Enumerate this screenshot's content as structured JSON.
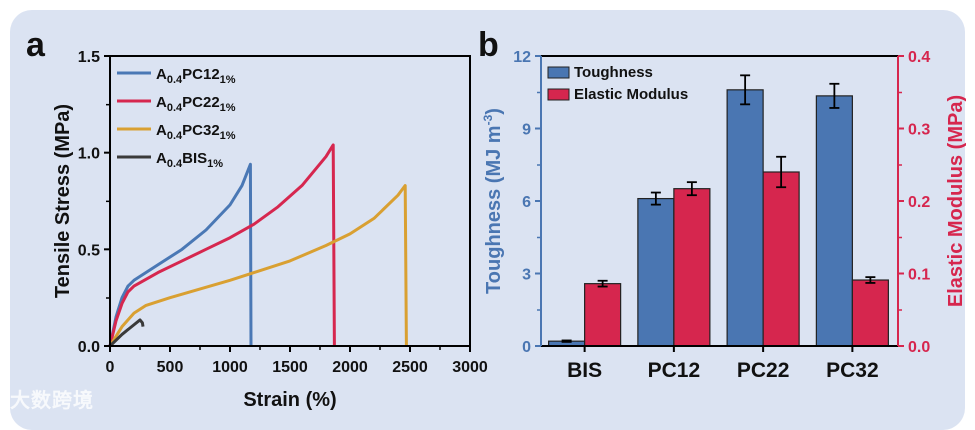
{
  "chart_data": [
    {
      "panel_label": "a",
      "type": "line",
      "xlabel": "Strain (%)",
      "ylabel": "Tensile Stress (MPa)",
      "xlim": [
        0,
        3000
      ],
      "ylim": [
        0,
        1.5
      ],
      "xticks": [
        "0",
        "500",
        "1000",
        "1500",
        "2000",
        "2500",
        "3000"
      ],
      "yticks": [
        "0.0",
        "0.5",
        "1.0",
        "1.5"
      ],
      "legend_position": "top-left",
      "series": [
        {
          "name": "A0.4PC12 1%",
          "base": "A",
          "sub1": "0.4",
          "mid": "PC12",
          "sub2": "1%",
          "color": "#4a78b5",
          "points": [
            [
              0,
              0
            ],
            [
              50,
              0.15
            ],
            [
              100,
              0.25
            ],
            [
              150,
              0.31
            ],
            [
              200,
              0.34
            ],
            [
              300,
              0.38
            ],
            [
              400,
              0.42
            ],
            [
              600,
              0.5
            ],
            [
              800,
              0.6
            ],
            [
              1000,
              0.73
            ],
            [
              1100,
              0.83
            ],
            [
              1170,
              0.94
            ],
            [
              1175,
              0
            ]
          ]
        },
        {
          "name": "A0.4PC22 1%",
          "base": "A",
          "sub1": "0.4",
          "mid": "PC22",
          "sub2": "1%",
          "color": "#d6274f",
          "points": [
            [
              0,
              0
            ],
            [
              50,
              0.13
            ],
            [
              100,
              0.22
            ],
            [
              150,
              0.28
            ],
            [
              200,
              0.31
            ],
            [
              400,
              0.38
            ],
            [
              600,
              0.44
            ],
            [
              800,
              0.5
            ],
            [
              1000,
              0.56
            ],
            [
              1200,
              0.63
            ],
            [
              1400,
              0.72
            ],
            [
              1600,
              0.83
            ],
            [
              1800,
              0.98
            ],
            [
              1860,
              1.04
            ],
            [
              1870,
              0
            ]
          ]
        },
        {
          "name": "A0.4PC32 1%",
          "base": "A",
          "sub1": "0.4",
          "mid": "PC32",
          "sub2": "1%",
          "color": "#d9a032",
          "points": [
            [
              0,
              0
            ],
            [
              100,
              0.1
            ],
            [
              200,
              0.17
            ],
            [
              300,
              0.21
            ],
            [
              500,
              0.25
            ],
            [
              1000,
              0.34
            ],
            [
              1200,
              0.38
            ],
            [
              1500,
              0.44
            ],
            [
              1800,
              0.52
            ],
            [
              2000,
              0.58
            ],
            [
              2200,
              0.66
            ],
            [
              2400,
              0.78
            ],
            [
              2460,
              0.83
            ],
            [
              2470,
              0
            ]
          ]
        },
        {
          "name": "A0.4BIS 1%",
          "base": "A",
          "sub1": "0.4",
          "mid": "BIS",
          "sub2": "1%",
          "color": "#3a3a3a",
          "points": [
            [
              0,
              0
            ],
            [
              100,
              0.06
            ],
            [
              200,
              0.11
            ],
            [
              250,
              0.135
            ],
            [
              270,
              0.12
            ],
            [
              275,
              0.1
            ]
          ]
        }
      ]
    },
    {
      "panel_label": "b",
      "type": "bar",
      "categories": [
        "BIS",
        "PC12",
        "PC22",
        "PC32"
      ],
      "ylabel_left": "Toughness (MJ m",
      "ylabel_left_sup": "-3",
      "ylabel_left_end": ")",
      "ylabel_right": "Elastic Modulus (MPa)",
      "ylim_left": [
        0,
        12
      ],
      "ylim_right": [
        0,
        0.4
      ],
      "yticks_left": [
        "0",
        "3",
        "6",
        "9",
        "12"
      ],
      "yticks_right": [
        "0.0",
        "0.1",
        "0.2",
        "0.3",
        "0.4"
      ],
      "legend_position": "top-left",
      "series": [
        {
          "name": "Toughness",
          "axis": "left",
          "color": "#4a76b2",
          "values": [
            0.2,
            6.1,
            10.6,
            10.35
          ],
          "errors": [
            0.03,
            0.25,
            0.6,
            0.5
          ]
        },
        {
          "name": "Elastic Modulus",
          "axis": "right",
          "color": "#d6264e",
          "values": [
            0.086,
            0.217,
            0.24,
            0.091
          ],
          "errors": [
            0.004,
            0.009,
            0.021,
            0.004
          ]
        }
      ]
    }
  ],
  "watermark": "大数跨境"
}
